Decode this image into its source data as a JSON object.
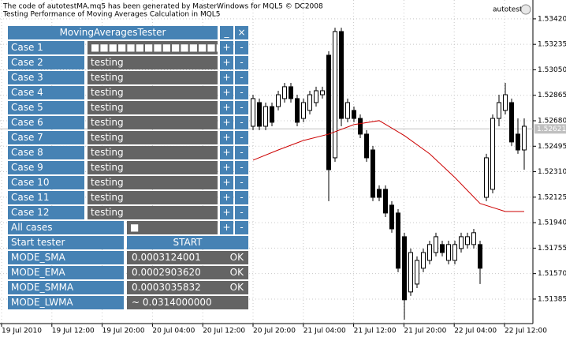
{
  "header": {
    "lines": [
      "The code of autotestMA.mq5 has been generated by MasterWindows for MQL5 © DC2008",
      "Testing Performance of Moving Averages Calculation in MQL5"
    ],
    "expert": "autotest"
  },
  "price_axis": {
    "ylim": [
      1.51207,
      1.53557
    ],
    "ticks": [
      {
        "value": 1.5342,
        "label": "1.53420"
      },
      {
        "value": 1.53235,
        "label": "1.53235"
      },
      {
        "value": 1.5305,
        "label": "1.53050"
      },
      {
        "value": 1.52865,
        "label": "1.52865"
      },
      {
        "value": 1.5268,
        "label": "1.52680"
      },
      {
        "value": 1.52495,
        "label": "1.52495"
      },
      {
        "value": 1.5231,
        "label": "1.52310"
      },
      {
        "value": 1.52125,
        "label": "1.52125"
      },
      {
        "value": 1.5194,
        "label": "1.51940"
      },
      {
        "value": 1.51755,
        "label": "1.51755"
      },
      {
        "value": 1.5157,
        "label": "1.51570"
      },
      {
        "value": 1.51385,
        "label": "1.51385"
      }
    ],
    "current": {
      "value": 1.52621,
      "label": "1.52621"
    }
  },
  "time_axis": {
    "labels": [
      "19 Jul 2010",
      "19 Jul 12:00",
      "19 Jul 20:00",
      "20 Jul 04:00",
      "20 Jul 12:00",
      "20 Jul 20:00",
      "21 Jul 04:00",
      "21 Jul 12:00",
      "21 Jul 20:00",
      "22 Jul 04:00",
      "22 Jul 12:00"
    ]
  },
  "candles": [
    [
      1.5264,
      1.52869,
      1.52612,
      1.52841
    ],
    [
      1.52812,
      1.52841,
      1.52612,
      1.5264
    ],
    [
      1.5264,
      1.52812,
      1.52612,
      1.52783
    ],
    [
      1.52783,
      1.52812,
      1.5264,
      1.52669
    ],
    [
      1.52783,
      1.52898,
      1.52755,
      1.52869
    ],
    [
      1.52841,
      1.52955,
      1.52812,
      1.52927
    ],
    [
      1.52927,
      1.52955,
      1.52812,
      1.52841
    ],
    [
      1.52841,
      1.52869,
      1.5264,
      1.52669
    ],
    [
      1.52697,
      1.52841,
      1.52669,
      1.52812
    ],
    [
      1.52755,
      1.52898,
      1.52726,
      1.52869
    ],
    [
      1.52812,
      1.52927,
      1.52783,
      1.52898
    ],
    [
      1.52869,
      1.52927,
      1.52841,
      1.52898
    ],
    [
      1.53156,
      1.53185,
      1.52096,
      1.52325
    ],
    [
      1.52411,
      1.53356,
      1.52382,
      1.53328
    ],
    [
      1.53328,
      1.53356,
      1.5264,
      1.52697
    ],
    [
      1.52697,
      1.52841,
      1.52669,
      1.52812
    ],
    [
      1.52755,
      1.52783,
      1.52669,
      1.52697
    ],
    [
      1.52697,
      1.52726,
      1.52554,
      1.52583
    ],
    [
      1.52583,
      1.52612,
      1.52382,
      1.52411
    ],
    [
      1.52468,
      1.52497,
      1.52096,
      1.52124
    ],
    [
      1.52182,
      1.52211,
      1.52096,
      1.52124
    ],
    [
      1.52182,
      1.52211,
      1.51981,
      1.5201
    ],
    [
      1.52067,
      1.52096,
      1.51867,
      1.51895
    ],
    [
      1.5201,
      1.52038,
      1.5158,
      1.51609
    ],
    [
      1.51838,
      1.51867,
      1.51236,
      1.5138
    ],
    [
      1.51437,
      1.51752,
      1.51408,
      1.51723
    ],
    [
      1.51494,
      1.51695,
      1.51465,
      1.51666
    ],
    [
      1.51609,
      1.51752,
      1.5158,
      1.51723
    ],
    [
      1.51666,
      1.51809,
      1.51637,
      1.51781
    ],
    [
      1.51723,
      1.51867,
      1.51695,
      1.51838
    ],
    [
      1.51781,
      1.51809,
      1.51695,
      1.51723
    ],
    [
      1.51666,
      1.51809,
      1.51637,
      1.51781
    ],
    [
      1.51666,
      1.51809,
      1.51637,
      1.51781
    ],
    [
      1.51752,
      1.51867,
      1.51723,
      1.51838
    ],
    [
      1.51781,
      1.51867,
      1.51752,
      1.51838
    ],
    [
      1.51781,
      1.51895,
      1.51752,
      1.51867
    ],
    [
      1.51781,
      1.51809,
      1.51494,
      1.51609
    ],
    [
      1.52124,
      1.5244,
      1.52096,
      1.52411
    ],
    [
      1.52182,
      1.52726,
      1.52153,
      1.52697
    ],
    [
      1.52697,
      1.52869,
      1.5264,
      1.52812
    ],
    [
      1.52755,
      1.52955,
      1.52726,
      1.52869
    ],
    [
      1.52812,
      1.52841,
      1.52497,
      1.52526
    ],
    [
      1.52583,
      1.52697,
      1.5244,
      1.52468
    ],
    [
      1.52468,
      1.52697,
      1.52325,
      1.5264
    ]
  ],
  "ma": {
    "x": [
      0,
      4,
      8,
      12,
      16,
      20,
      24,
      28,
      32,
      36,
      40,
      43
    ],
    "values": [
      1.52394,
      1.52468,
      1.52537,
      1.52583,
      1.52652,
      1.52681,
      1.52572,
      1.5244,
      1.52268,
      1.52079,
      1.52021,
      1.52021
    ],
    "color": "#cc0000"
  },
  "panel": {
    "title": "MovingAveragesTester",
    "minimize": "_",
    "close": "×",
    "plus": "+",
    "minus": "-",
    "cases": [
      {
        "label": "Case 1",
        "value": "■■■■■■■■■■■■■■■■"
      },
      {
        "label": "Case 2",
        "value": "testing"
      },
      {
        "label": "Case 3",
        "value": "testing"
      },
      {
        "label": "Case 4",
        "value": "testing"
      },
      {
        "label": "Case 5",
        "value": "testing"
      },
      {
        "label": "Case 6",
        "value": "testing"
      },
      {
        "label": "Case 7",
        "value": "testing"
      },
      {
        "label": "Case 8",
        "value": "testing"
      },
      {
        "label": "Case 9",
        "value": "testing"
      },
      {
        "label": "Case 10",
        "value": "testing"
      },
      {
        "label": "Case 11",
        "value": "testing"
      },
      {
        "label": "Case 12",
        "value": "testing"
      }
    ],
    "all_cases": {
      "label": "All cases",
      "value": "■"
    },
    "start": {
      "label": "Start tester",
      "button": "START"
    },
    "modes": [
      {
        "label": "MODE_SMA",
        "value": "0.0003124001",
        "status": "OK"
      },
      {
        "label": "MODE_EMA",
        "value": "0.0002903620",
        "status": "OK"
      },
      {
        "label": "MODE_SMMA",
        "value": "0.0003035832",
        "status": "OK"
      },
      {
        "label": "MODE_LWMA",
        "value": "~ 0.0314000000",
        "status": null
      }
    ]
  }
}
